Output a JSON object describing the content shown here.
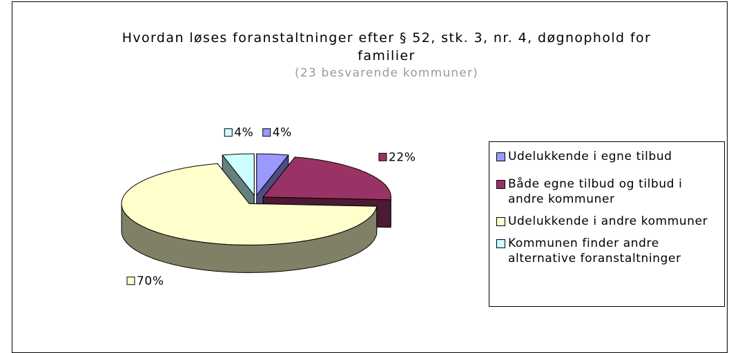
{
  "chart_data": {
    "type": "pie",
    "title": "Hvordan løses foranstaltninger efter § 52, stk. 3, nr. 4, døgnophold for familier",
    "subtitle": "(23 besvarende kommuner)",
    "categories": [
      "Udelukkende i egne tilbud",
      "Både egne tilbud og tilbud i andre kommuner",
      "Udelukkende i andre kommuner",
      "Kommunen finder andre alternative foranstaltninger"
    ],
    "values": [
      4,
      22,
      70,
      4
    ],
    "value_labels": [
      "4%",
      "22%",
      "70%",
      "4%"
    ],
    "colors": [
      "#9999ff",
      "#993366",
      "#ffffcc",
      "#ccffff"
    ],
    "legend": "right"
  }
}
